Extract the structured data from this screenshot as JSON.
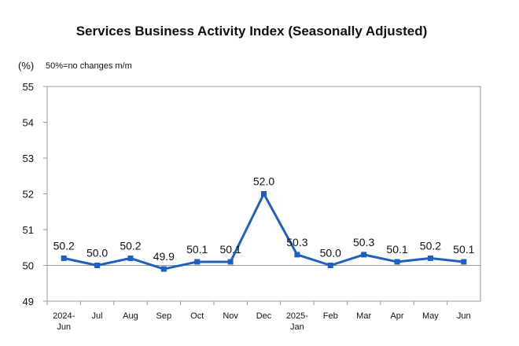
{
  "chart_data": {
    "type": "line",
    "title": "Services Business Activity Index (Seasonally Adjusted)",
    "unit_label": "(%)",
    "note": "50%=no changes m/m",
    "ylim": [
      49,
      55
    ],
    "yticks": [
      "49",
      "50",
      "51",
      "52",
      "53",
      "54",
      "55"
    ],
    "categories": [
      [
        "2024-",
        "Jun"
      ],
      [
        "Jul"
      ],
      [
        "Aug"
      ],
      [
        "Sep"
      ],
      [
        "Oct"
      ],
      [
        "Nov"
      ],
      [
        "Dec"
      ],
      [
        "2025-",
        "Jan"
      ],
      [
        "Feb"
      ],
      [
        "Mar"
      ],
      [
        "Apr"
      ],
      [
        "May"
      ],
      [
        "Jun"
      ]
    ],
    "series": [
      {
        "values": [
          50.2,
          50.0,
          50.2,
          49.9,
          50.1,
          50.1,
          52.0,
          50.3,
          50.0,
          50.3,
          50.1,
          50.2,
          50.1
        ],
        "labels": [
          "50.2",
          "50.0",
          "50.2",
          "49.9",
          "50.1",
          "50.1",
          "52.0",
          "50.3",
          "50.0",
          "50.3",
          "50.1",
          "50.2",
          "50.1"
        ],
        "color": "#1f5fbf"
      }
    ],
    "reference_line": 50,
    "reference_color": "#9a9a9a",
    "grid": false
  }
}
